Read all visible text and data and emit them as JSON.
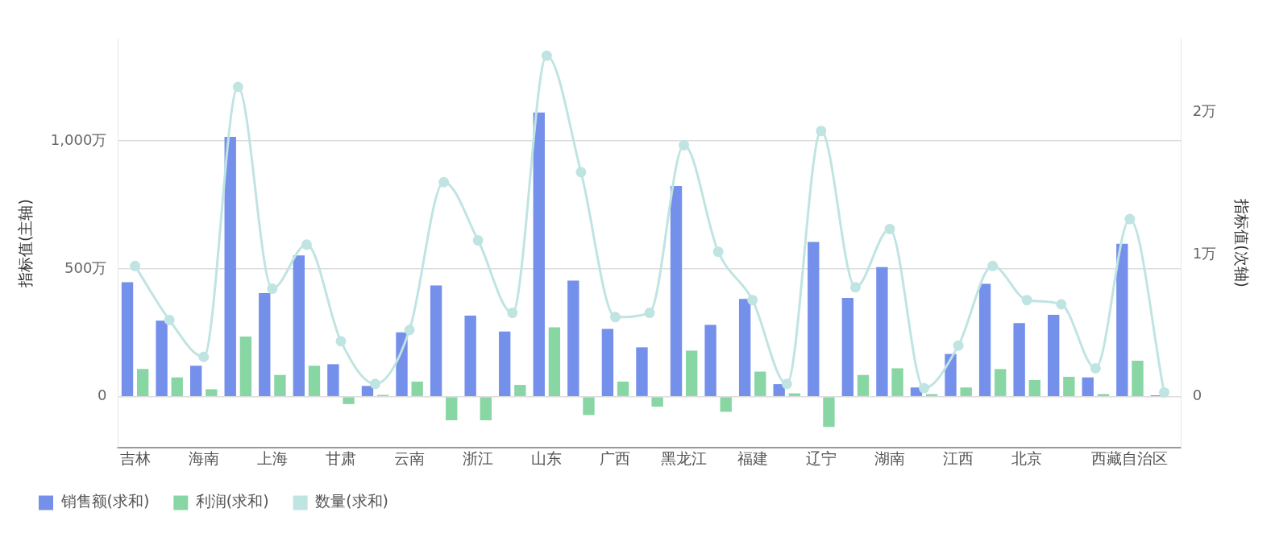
{
  "chart_data": {
    "type": "bar",
    "ylabel": "指标值(主轴)",
    "y2label": "指标值(次轴)",
    "categories": [
      "吉林",
      null,
      "海南",
      null,
      "上海",
      null,
      "甘肃",
      null,
      "云南",
      null,
      "浙江",
      null,
      "山东",
      null,
      "广西",
      null,
      "黑龙江",
      null,
      "福建",
      null,
      "辽宁",
      null,
      "湖南",
      null,
      "江西",
      null,
      "北京",
      null,
      null,
      "西藏自治区",
      null
    ],
    "series": [
      {
        "name": "销售额(求和)",
        "color": "#7490ea",
        "values": [
          448,
          297,
          121,
          1016,
          405,
          552,
          127,
          42,
          252,
          435,
          317,
          255,
          1111,
          454,
          265,
          193,
          824,
          281,
          382,
          49,
          605,
          386,
          507,
          36,
          167,
          441,
          288,
          320,
          75,
          598,
          5
        ]
      },
      {
        "name": "利润(求和)",
        "color": "#88d6a4",
        "values": [
          108,
          75,
          29,
          235,
          85,
          121,
          -29,
          7,
          59,
          -92,
          -92,
          46,
          271,
          -72,
          59,
          -39,
          180,
          -59,
          98,
          13,
          -118,
          85,
          111,
          10,
          36,
          108,
          65,
          78,
          10,
          141,
          null
        ]
      },
      {
        "name": "数量(求和)",
        "color": "#bfe4e2",
        "type": "line",
        "axis": "y2",
        "marker": "circle",
        "values": [
          0.92,
          0.54,
          0.28,
          2.18,
          0.76,
          1.07,
          0.39,
          0.09,
          0.47,
          1.51,
          1.1,
          0.59,
          2.4,
          1.58,
          0.56,
          0.59,
          1.77,
          1.02,
          0.68,
          0.09,
          1.87,
          0.77,
          1.18,
          0.06,
          0.36,
          0.92,
          0.68,
          0.65,
          0.2,
          1.25,
          0.03
        ]
      }
    ],
    "ylim": [
      -200,
      1400
    ],
    "yticks": [
      0,
      {
        "value": 500,
        "label": "500万"
      },
      {
        "value": 1000,
        "label": "1,000万"
      }
    ],
    "y2lim": [
      -0.36,
      2.52
    ],
    "y2ticks": [
      0,
      {
        "value": 1,
        "label": "1万"
      },
      {
        "value": 2,
        "label": "2万"
      }
    ],
    "grid": "y",
    "legend": "bottom left"
  }
}
